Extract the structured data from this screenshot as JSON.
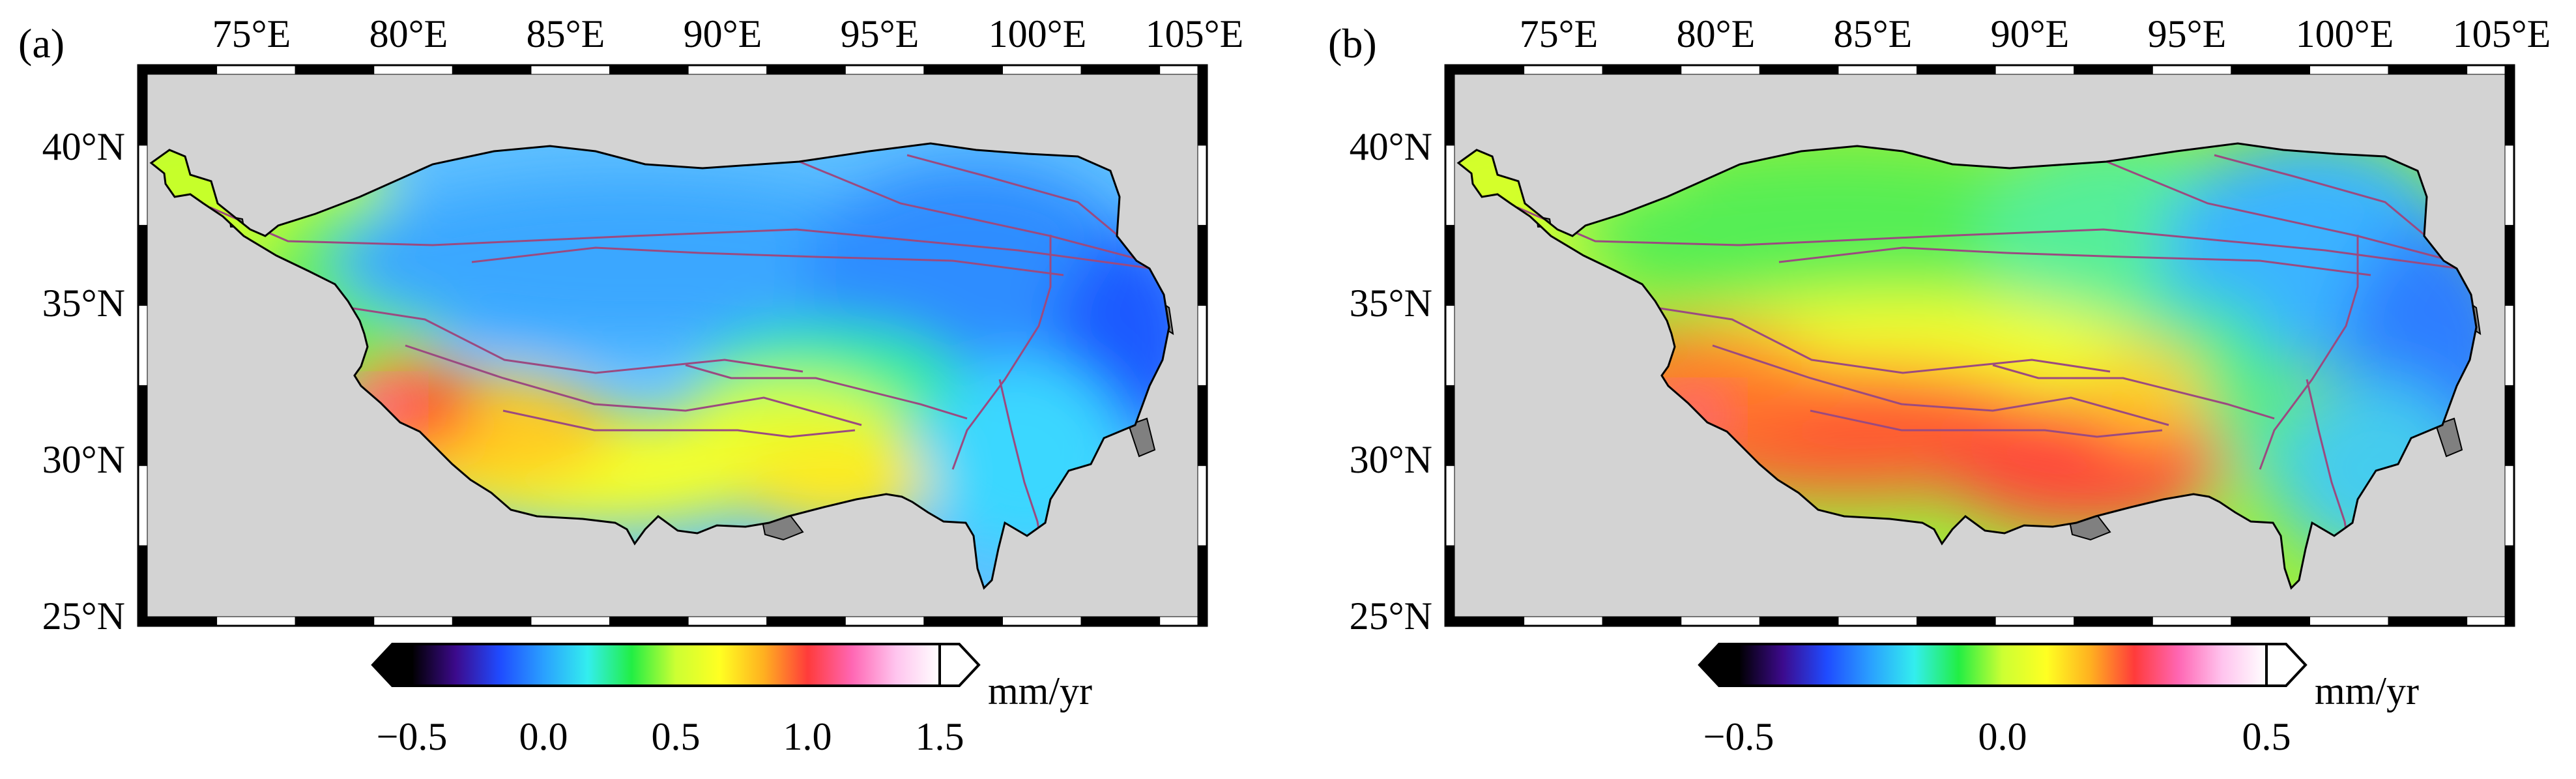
{
  "panels": [
    {
      "label": "(a)",
      "lon_ticks": [
        "75°E",
        "80°E",
        "85°E",
        "90°E",
        "95°E",
        "100°E",
        "105°E"
      ],
      "lat_ticks": [
        "40°N",
        "35°N",
        "30°N",
        "25°N"
      ],
      "colorbar": {
        "ticks": [
          "−0.5",
          "0.0",
          "0.5",
          "1.0",
          "1.5"
        ],
        "unit": "mm/yr",
        "colors": [
          "#000000",
          "#3c0a8c",
          "#1f4bff",
          "#2aa0ff",
          "#33eeee",
          "#22ee44",
          "#ccff33",
          "#ffff22",
          "#ffb020",
          "#ff3b3b",
          "#ff66b3",
          "#ffc4ee",
          "#ffffff"
        ]
      }
    },
    {
      "label": "(b)",
      "lon_ticks": [
        "75°E",
        "80°E",
        "85°E",
        "90°E",
        "95°E",
        "100°E",
        "105°E"
      ],
      "lat_ticks": [
        "40°N",
        "35°N",
        "30°N",
        "25°N"
      ],
      "colorbar": {
        "ticks": [
          "−0.5",
          "0.0",
          "0.5"
        ],
        "unit": "mm/yr",
        "colors": [
          "#000000",
          "#3c0a8c",
          "#1f4bff",
          "#2aa0ff",
          "#33eeee",
          "#22ee44",
          "#ccff33",
          "#ffff22",
          "#ffb020",
          "#ff3b3b",
          "#ff66b3",
          "#ffc4ee",
          "#ffffff"
        ]
      }
    }
  ],
  "map_colors": {
    "background": "#d3d3d3",
    "outside_land": "#808080",
    "faults": "#9b4a80",
    "frame_dark": "#000000",
    "frame_light": "#ffffff"
  }
}
